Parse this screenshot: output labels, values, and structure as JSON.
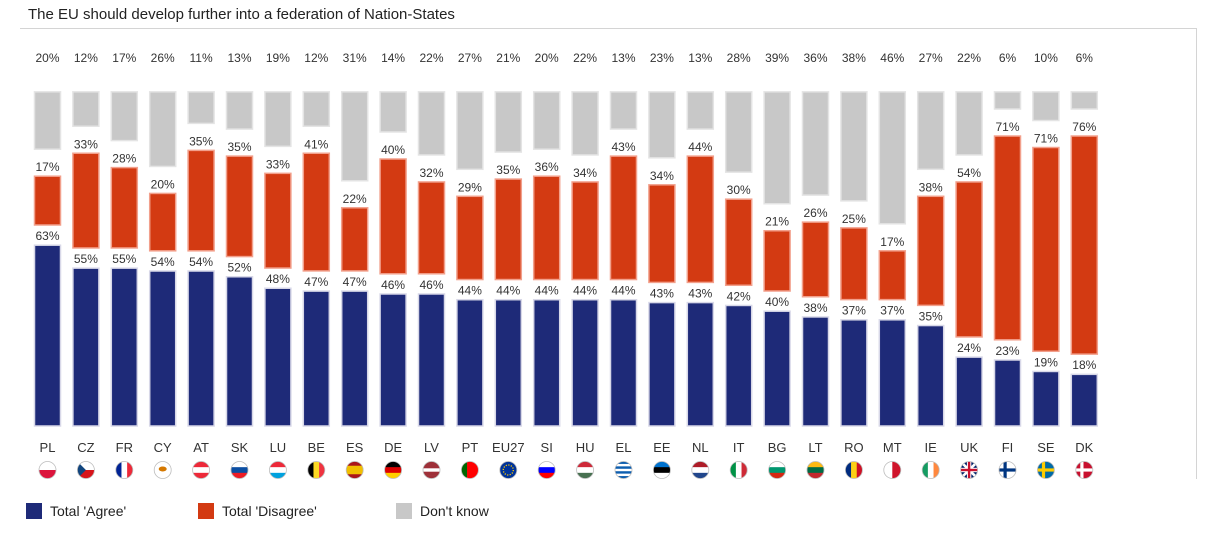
{
  "chart_data": {
    "type": "bar",
    "title": "The EU should develop further into a federation of Nation-States",
    "categories": [
      "PL",
      "CZ",
      "FR",
      "CY",
      "AT",
      "SK",
      "LU",
      "BE",
      "ES",
      "DE",
      "LV",
      "PT",
      "EU27",
      "SI",
      "HU",
      "EL",
      "EE",
      "NL",
      "IT",
      "BG",
      "LT",
      "RO",
      "MT",
      "IE",
      "UK",
      "FI",
      "SE",
      "DK"
    ],
    "series": [
      {
        "name": "Total 'Agree'",
        "color": "#1e2a78",
        "values": [
          63,
          55,
          55,
          54,
          54,
          52,
          48,
          47,
          47,
          46,
          46,
          44,
          44,
          44,
          44,
          44,
          43,
          43,
          42,
          40,
          38,
          37,
          37,
          35,
          24,
          23,
          19,
          18
        ]
      },
      {
        "name": "Total 'Disagree'",
        "color": "#d33a12",
        "values": [
          17,
          33,
          28,
          20,
          35,
          35,
          33,
          41,
          22,
          40,
          32,
          29,
          35,
          36,
          34,
          43,
          34,
          44,
          30,
          21,
          26,
          25,
          17,
          38,
          54,
          71,
          71,
          76
        ]
      },
      {
        "name": "Don't know",
        "color": "#c8c8c8",
        "values": [
          20,
          12,
          17,
          26,
          11,
          13,
          19,
          12,
          31,
          14,
          22,
          27,
          21,
          20,
          22,
          13,
          23,
          13,
          28,
          39,
          36,
          38,
          46,
          27,
          22,
          6,
          10,
          6
        ]
      }
    ],
    "value_suffix": "%",
    "flags": [
      "poland-flag",
      "czech-flag",
      "france-flag",
      "cyprus-flag",
      "austria-flag",
      "slovakia-flag",
      "luxembourg-flag",
      "belgium-flag",
      "spain-flag",
      "germany-flag",
      "latvia-flag",
      "portugal-flag",
      "eu-flag",
      "slovenia-flag",
      "hungary-flag",
      "greece-flag",
      "estonia-flag",
      "netherlands-flag",
      "italy-flag",
      "bulgaria-flag",
      "lithuania-flag",
      "romania-flag",
      "malta-flag",
      "ireland-flag",
      "uk-flag",
      "finland-flag",
      "sweden-flag",
      "denmark-flag"
    ],
    "legend_position": "bottom-left"
  },
  "legend": {
    "agree": "Total 'Agree'",
    "disagree": "Total 'Disagree'",
    "dontknow": "Don't know"
  }
}
